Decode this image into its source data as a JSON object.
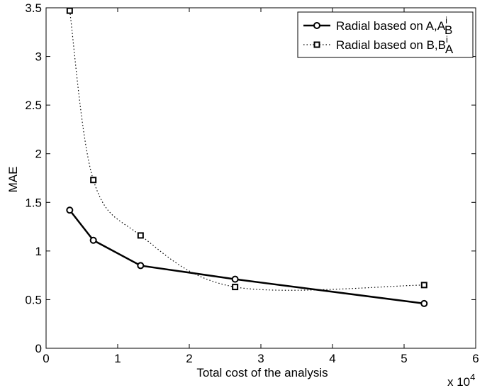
{
  "chart_data": {
    "type": "line",
    "xlabel": "Total cost of the analysis",
    "ylabel": "MAE",
    "x_exponent_label": "x 10",
    "x_exponent_power": "4",
    "xlim": [
      0,
      6
    ],
    "ylim": [
      0,
      3.5
    ],
    "x_ticks": [
      "0",
      "1",
      "2",
      "3",
      "4",
      "5",
      "6"
    ],
    "y_ticks": [
      "0",
      "0.5",
      "1",
      "1.5",
      "2",
      "2.5",
      "3",
      "3.5"
    ],
    "grid": false,
    "legend_position": "top-right",
    "series": [
      {
        "name": "Radial based on A,A",
        "legend_sup": "i",
        "legend_sub": "B",
        "style": "solid",
        "marker": "circle",
        "color": "#000000",
        "x": [
          0.33,
          0.66,
          1.32,
          2.64,
          5.28
        ],
        "y": [
          1.42,
          1.11,
          0.85,
          0.71,
          0.46
        ]
      },
      {
        "name": "Radial based on B,B",
        "legend_sup": "i",
        "legend_sub": "A",
        "style": "dotted",
        "marker": "square",
        "color": "#000000",
        "x": [
          0.33,
          0.66,
          1.32,
          2.64,
          5.28
        ],
        "y": [
          3.47,
          1.73,
          1.16,
          0.63,
          0.65
        ]
      }
    ]
  }
}
